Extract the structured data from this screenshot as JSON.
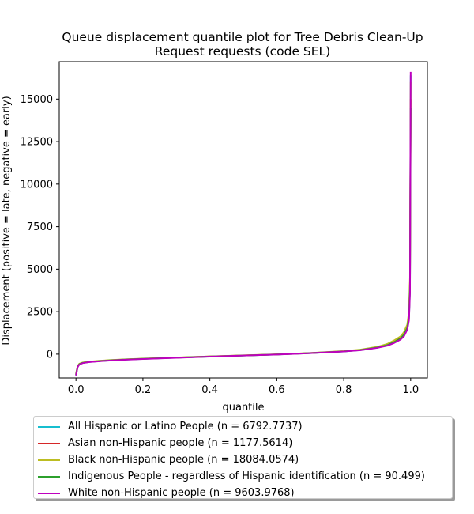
{
  "chart_data": {
    "type": "line",
    "title": [
      "Queue displacement quantile plot for Tree Debris Clean-Up",
      "Request  requests (code SEL)"
    ],
    "xlabel": "quantile",
    "ylabel": "Displacement (positive = late, negative = early)",
    "xlim": [
      -0.05,
      1.05
    ],
    "ylim": [
      -1400,
      17200
    ],
    "xticks": [
      0.0,
      0.2,
      0.4,
      0.6,
      0.8,
      1.0
    ],
    "xtick_labels": [
      "0.0",
      "0.2",
      "0.4",
      "0.6",
      "0.8",
      "1.0"
    ],
    "yticks": [
      0,
      2500,
      5000,
      7500,
      10000,
      12500,
      15000
    ],
    "ytick_labels": [
      "0",
      "2500",
      "5000",
      "7500",
      "10000",
      "12500",
      "15000"
    ],
    "grid": false,
    "legend_position": "below plot",
    "series": [
      {
        "name": "All Hispanic or Latino People (n = 6792.7737)",
        "color": "#17becf",
        "x": [
          0.0,
          0.005,
          0.01,
          0.02,
          0.04,
          0.07,
          0.1,
          0.15,
          0.2,
          0.3,
          0.4,
          0.5,
          0.6,
          0.7,
          0.8,
          0.85,
          0.9,
          0.93,
          0.95,
          0.97,
          0.98,
          0.99,
          0.995,
          0.998,
          1.0
        ],
        "y": [
          -1250,
          -750,
          -600,
          -520,
          -460,
          -410,
          -370,
          -320,
          -280,
          -210,
          -140,
          -80,
          -20,
          60,
          160,
          240,
          380,
          520,
          680,
          900,
          1100,
          1500,
          2100,
          3800,
          16400
        ]
      },
      {
        "name": "Asian non-Hispanic people (n = 1177.5614)",
        "color": "#d62728",
        "x": [
          0.0,
          0.005,
          0.01,
          0.02,
          0.04,
          0.07,
          0.1,
          0.15,
          0.2,
          0.3,
          0.4,
          0.5,
          0.6,
          0.7,
          0.8,
          0.85,
          0.9,
          0.93,
          0.95,
          0.97,
          0.98,
          0.99,
          0.995,
          0.998,
          1.0
        ],
        "y": [
          -1200,
          -720,
          -580,
          -500,
          -450,
          -400,
          -360,
          -310,
          -270,
          -200,
          -135,
          -75,
          -15,
          65,
          170,
          250,
          400,
          550,
          720,
          950,
          1200,
          1600,
          2300,
          4200,
          15000
        ]
      },
      {
        "name": "Black non-Hispanic people (n = 18084.0574)",
        "color": "#bcbd22",
        "x": [
          0.0,
          0.005,
          0.01,
          0.02,
          0.04,
          0.07,
          0.1,
          0.15,
          0.2,
          0.3,
          0.4,
          0.5,
          0.6,
          0.7,
          0.8,
          0.85,
          0.9,
          0.93,
          0.95,
          0.97,
          0.98,
          0.99,
          0.995,
          0.998,
          1.0
        ],
        "y": [
          -1150,
          -700,
          -560,
          -490,
          -440,
          -390,
          -350,
          -300,
          -260,
          -195,
          -130,
          -70,
          -10,
          70,
          180,
          270,
          430,
          600,
          800,
          1050,
          1300,
          1750,
          2500,
          4500,
          16000
        ]
      },
      {
        "name": "Indigenous People - regardless of Hispanic identification (n = 90.499)",
        "color": "#2ca02c",
        "x": [
          0.0,
          0.005,
          0.01,
          0.02,
          0.04,
          0.07,
          0.1,
          0.15,
          0.2,
          0.3,
          0.4,
          0.5,
          0.6,
          0.7,
          0.8,
          0.85,
          0.9,
          0.93,
          0.95,
          0.97,
          0.98,
          0.99,
          0.995,
          0.998,
          1.0
        ],
        "y": [
          -1200,
          -740,
          -590,
          -510,
          -455,
          -405,
          -365,
          -315,
          -275,
          -205,
          -138,
          -78,
          -18,
          62,
          165,
          245,
          390,
          530,
          700,
          920,
          1150,
          1550,
          2200,
          4000,
          14500
        ]
      },
      {
        "name": "White non-Hispanic people (n = 9603.9768)",
        "color": "#bf00bf",
        "x": [
          0.0,
          0.005,
          0.01,
          0.02,
          0.04,
          0.07,
          0.1,
          0.15,
          0.2,
          0.3,
          0.4,
          0.5,
          0.6,
          0.7,
          0.8,
          0.85,
          0.9,
          0.93,
          0.95,
          0.97,
          0.98,
          0.99,
          0.995,
          0.998,
          1.0
        ],
        "y": [
          -1250,
          -760,
          -610,
          -525,
          -465,
          -415,
          -375,
          -325,
          -285,
          -212,
          -142,
          -82,
          -22,
          58,
          155,
          235,
          370,
          500,
          650,
          860,
          1050,
          1450,
          2000,
          3600,
          16600
        ]
      }
    ]
  }
}
